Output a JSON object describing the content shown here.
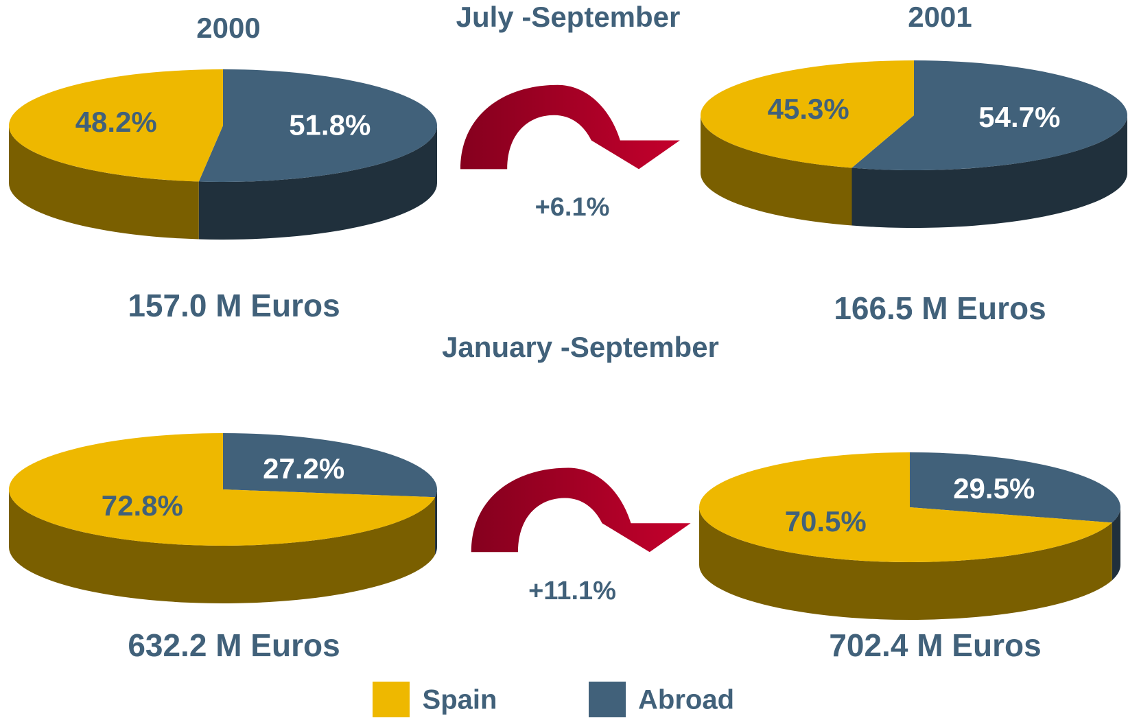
{
  "columns": [
    "2000",
    "2001"
  ],
  "periods": [
    {
      "title": "July -September",
      "change": "+6.1%"
    },
    {
      "title": "January -September",
      "change": "+11.1%"
    }
  ],
  "chart_data": [
    {
      "type": "pie",
      "categories": [
        "Spain",
        "Abroad"
      ],
      "values": [
        48.2,
        51.8
      ],
      "value_labels": [
        "48.2%",
        "51.8%"
      ],
      "colors": [
        "#eeb800",
        "#41617a"
      ],
      "side_colors": [
        "#7a5f00",
        "#20303c"
      ],
      "total": "157.0 M Euros"
    },
    {
      "type": "pie",
      "categories": [
        "Spain",
        "Abroad"
      ],
      "values": [
        45.3,
        54.7
      ],
      "value_labels": [
        "45.3%",
        "54.7%"
      ],
      "colors": [
        "#eeb800",
        "#41617a"
      ],
      "side_colors": [
        "#7a5f00",
        "#20303c"
      ],
      "total": "166.5 M Euros"
    },
    {
      "type": "pie",
      "categories": [
        "Spain",
        "Abroad"
      ],
      "values": [
        72.8,
        27.2
      ],
      "value_labels": [
        "72.8%",
        "27.2%"
      ],
      "colors": [
        "#eeb800",
        "#41617a"
      ],
      "side_colors": [
        "#7a5f00",
        "#20303c"
      ],
      "total": "632.2 M Euros"
    },
    {
      "type": "pie",
      "categories": [
        "Spain",
        "Abroad"
      ],
      "values": [
        70.5,
        29.5
      ],
      "value_labels": [
        "70.5%",
        "29.5%"
      ],
      "colors": [
        "#eeb800",
        "#41617a"
      ],
      "side_colors": [
        "#7a5f00",
        "#20303c"
      ],
      "total": "702.4 M Euros"
    }
  ]
}
